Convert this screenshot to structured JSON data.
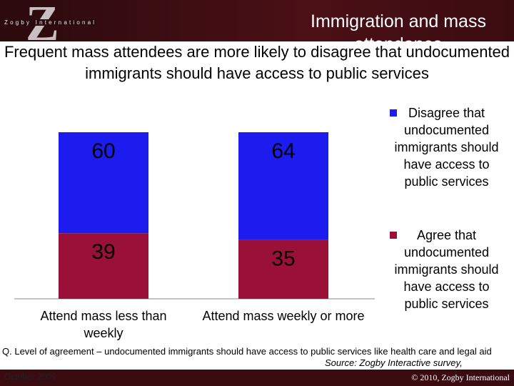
{
  "header": {
    "logo": "Z",
    "logo_text": "Zogby International",
    "title": "Immigration  and mass attendance"
  },
  "chart_data": {
    "type": "stacked_bar",
    "title": "Frequent mass attendees are more likely to disagree that undocumented immigrants should have access to public services",
    "categories": [
      "Attend mass less than weekly",
      "Attend mass weekly or more"
    ],
    "series": [
      {
        "name": "Disagree that undocumented immigrants should have access to public services",
        "color": "#1c1cee",
        "values": [
          60,
          64
        ]
      },
      {
        "name": "Agree that undocumented immigrants should have access to public services",
        "color": "#9a1038",
        "values": [
          39,
          35
        ]
      }
    ]
  },
  "footnote": {
    "question": "Q. Level of agreement – undocumented immigrants should have access to public services like health care and legal aid",
    "source": "Source:  Zogby Interactive survey,",
    "date": "October 2009"
  },
  "footer": {
    "copyright": "© 2010, Zogby International"
  }
}
